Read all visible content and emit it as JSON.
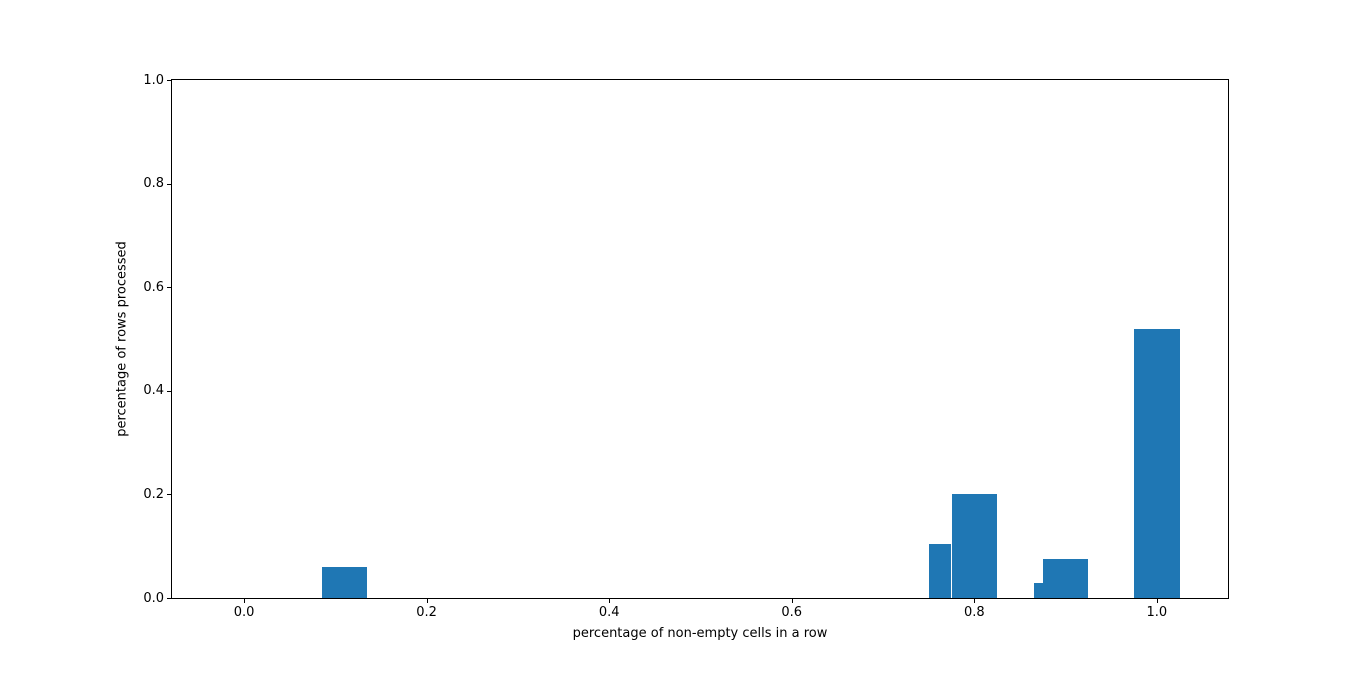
{
  "chart_data": {
    "type": "bar",
    "title": "",
    "xlabel": "percentage of non-empty cells in a row",
    "ylabel": "percentage of rows processed",
    "xlim": [
      -0.079,
      1.078
    ],
    "ylim": [
      0,
      1
    ],
    "x_ticks": [
      0.0,
      0.2,
      0.4,
      0.6,
      0.8,
      1.0
    ],
    "x_tick_labels": [
      "0.0",
      "0.2",
      "0.4",
      "0.6",
      "0.8",
      "1.0"
    ],
    "y_ticks": [
      0.0,
      0.2,
      0.4,
      0.6,
      0.8,
      1.0
    ],
    "y_tick_labels": [
      "0.0",
      "0.2",
      "0.4",
      "0.6",
      "0.8",
      "1.0"
    ],
    "bar_color": "#1f77b4",
    "grid": false,
    "legend": null,
    "bars": [
      {
        "x0": 0.085,
        "x1": 0.135,
        "height": 0.06
      },
      {
        "x0": 0.75,
        "x1": 0.775,
        "height": 0.105
      },
      {
        "x0": 0.775,
        "x1": 0.825,
        "height": 0.2
      },
      {
        "x0": 0.865,
        "x1": 0.875,
        "height": 0.03
      },
      {
        "x0": 0.875,
        "x1": 0.925,
        "height": 0.075
      },
      {
        "x0": 0.975,
        "x1": 1.025,
        "height": 0.52
      }
    ]
  }
}
